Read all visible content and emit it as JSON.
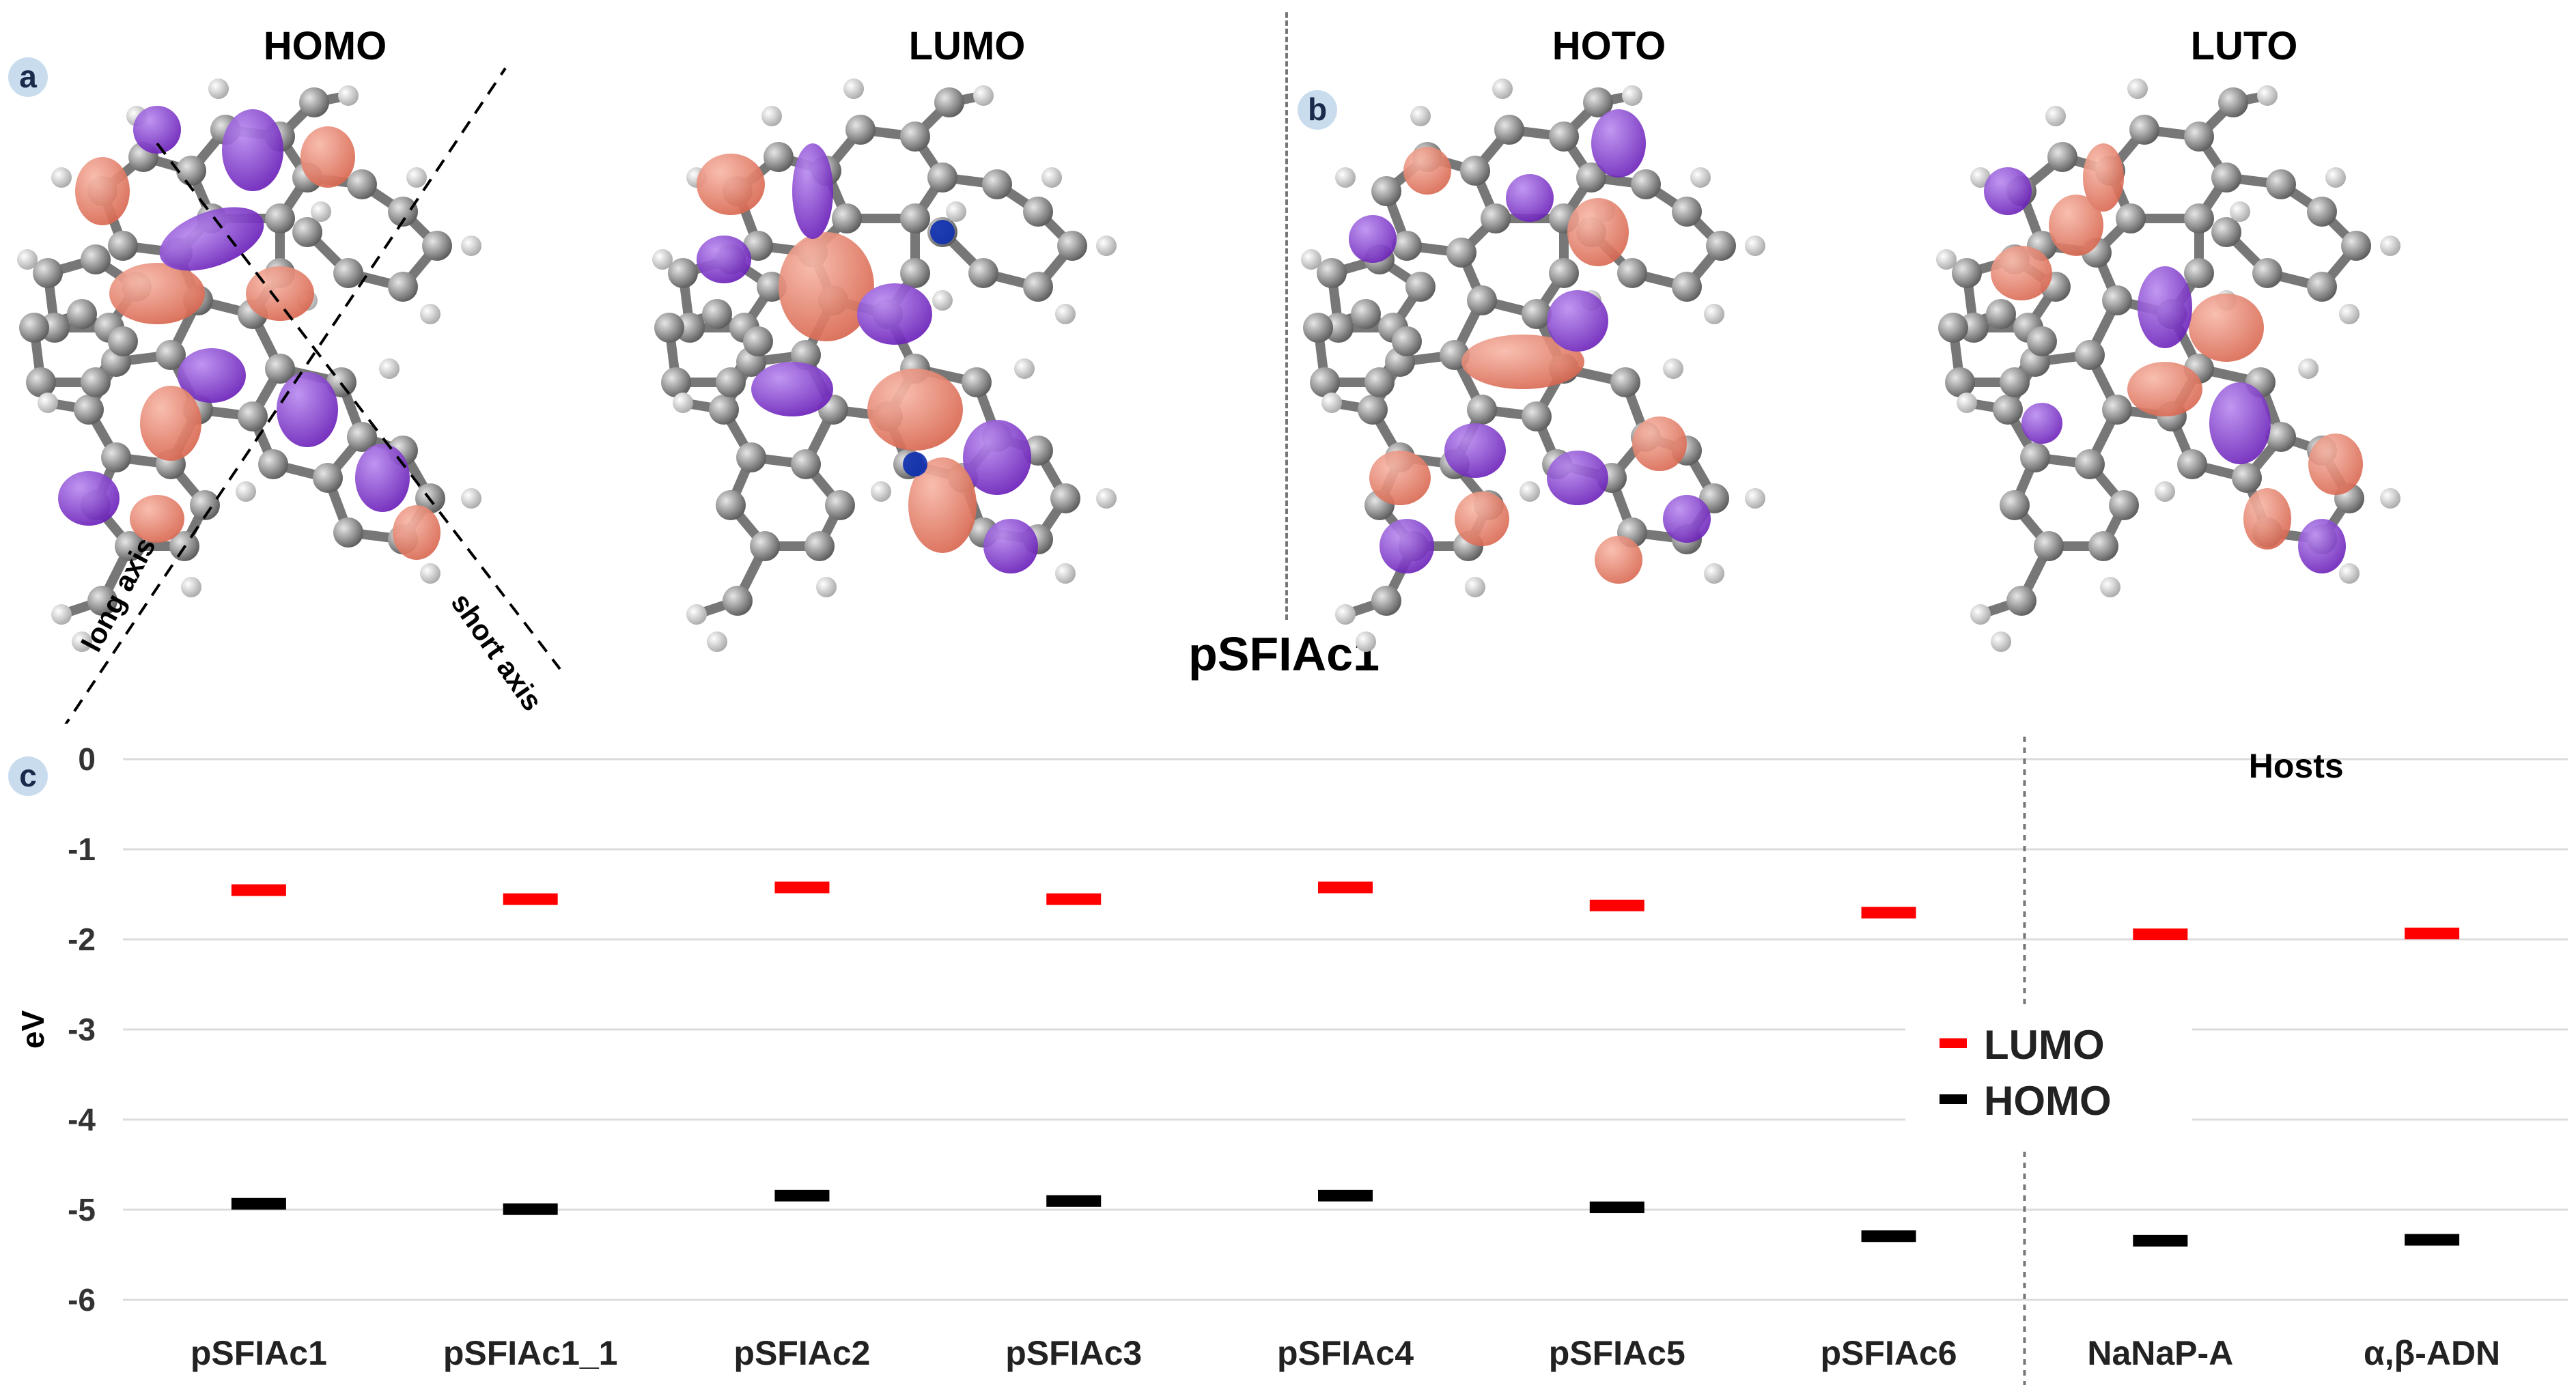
{
  "panel_labels": {
    "a": "a",
    "b": "b",
    "c": "c"
  },
  "orbital_titles": [
    "HOMO",
    "LUMO",
    "HOTO",
    "LUTO"
  ],
  "molecule_name": "pSFIAc1",
  "axis_annotations": {
    "long": "long axis",
    "short": "short axis"
  },
  "atom_letters": {
    "carbon": "C",
    "hydrogen": "H"
  },
  "colors": {
    "lobe_positive": "#e8806e",
    "lobe_negative": "#8a3fd0",
    "carbon": "#8a8a8a",
    "hydrogen": "#d8d8d8",
    "nitrogen": "#1030b0",
    "lumo_level": "#ff0000",
    "homo_level": "#000000"
  },
  "chart_data": {
    "type": "scatter",
    "marker": "horizontal-bar",
    "categories": [
      "pSFIAc1",
      "pSFIAc1_1",
      "pSFIAc2",
      "pSFIAc3",
      "pSFIAc4",
      "pSFIAc5",
      "pSFIAc6",
      "NaNaP-A",
      "α,β-ADN"
    ],
    "series": [
      {
        "name": "LUMO",
        "color": "#ff0000",
        "values": [
          -1.45,
          -1.55,
          -1.42,
          -1.55,
          -1.42,
          -1.62,
          -1.7,
          -1.94,
          -1.93
        ]
      },
      {
        "name": "HOMO",
        "color": "#000000",
        "values": [
          -4.93,
          -4.99,
          -4.84,
          -4.9,
          -4.84,
          -4.97,
          -5.29,
          -5.34,
          -5.33
        ]
      }
    ],
    "ylabel": "eV",
    "xlabel": "",
    "ylim": [
      -6.5,
      0
    ],
    "yticks": [
      0,
      -1,
      -2,
      -3,
      -4,
      -5,
      -6
    ],
    "grid": true,
    "legend_position": "center-right",
    "group_label": "Hosts",
    "group_start_index": 7
  }
}
